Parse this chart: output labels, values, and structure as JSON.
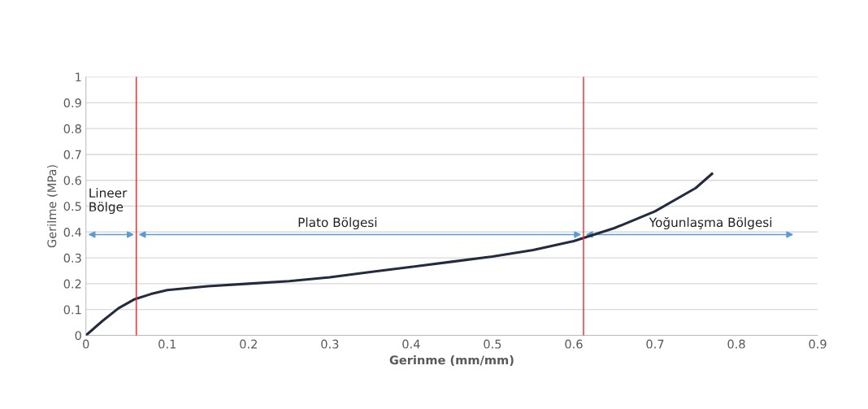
{
  "chart_data": {
    "type": "line",
    "xlabel": "Gerinme (mm/mm)",
    "ylabel": "Gerilme (MPa)",
    "series": [
      {
        "color": "#232b3f",
        "x": [
          0,
          0.02,
          0.04,
          0.06,
          0.08,
          0.1,
          0.15,
          0.2,
          0.25,
          0.3,
          0.35,
          0.4,
          0.45,
          0.5,
          0.55,
          0.6,
          0.65,
          0.7,
          0.75,
          0.77
        ],
        "values": [
          0,
          0.055,
          0.105,
          0.14,
          0.16,
          0.175,
          0.19,
          0.2,
          0.21,
          0.225,
          0.245,
          0.265,
          0.285,
          0.305,
          0.33,
          0.365,
          0.415,
          0.48,
          0.57,
          0.625
        ]
      }
    ],
    "xlim": [
      0,
      0.9
    ],
    "xticks": [
      0,
      0.1,
      0.2,
      0.3,
      0.4,
      0.5,
      0.6,
      0.7,
      0.8,
      0.9
    ],
    "ylim": [
      0,
      1
    ],
    "yticks": [
      0,
      0.1,
      0.2,
      0.3,
      0.4,
      0.5,
      0.6,
      0.7,
      0.8,
      0.9,
      1
    ],
    "grid": "y",
    "marker": "none",
    "line_style": "solid",
    "ref_lines": [
      {
        "axis": "x",
        "value": 0.062,
        "color": "#ff2020"
      },
      {
        "axis": "x",
        "value": 0.612,
        "color": "#ff2020"
      }
    ],
    "annotations": [
      "Lineer\nBölge",
      "Plato Bölgesi",
      "Yoğunlaşma Bölgesi"
    ]
  }
}
